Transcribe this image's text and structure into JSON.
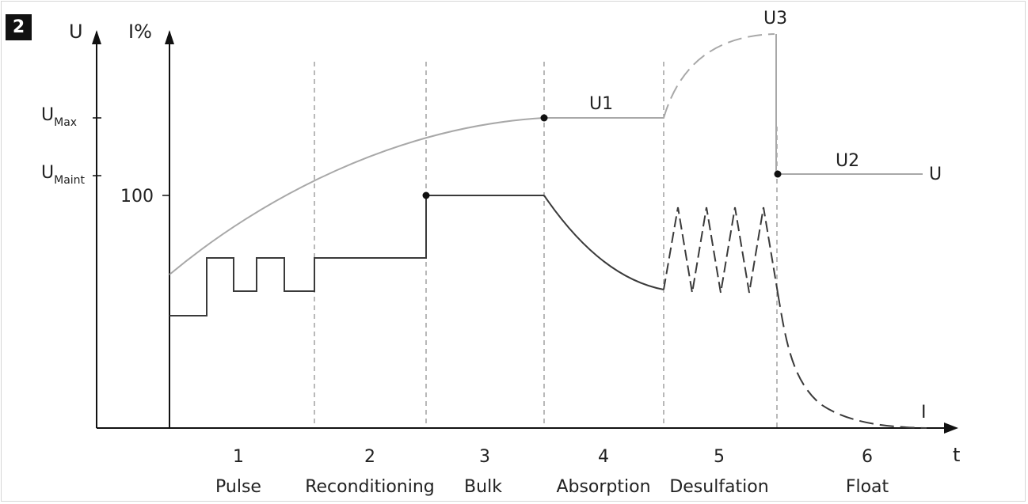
{
  "figure_number": "2",
  "axes": {
    "voltage_axis_label": "U",
    "current_axis_label": "I%",
    "time_axis_label": "t",
    "u_ticks": [
      {
        "main": "U",
        "sub": "Max"
      },
      {
        "main": "U",
        "sub": "Maint"
      }
    ],
    "current_tick": "100"
  },
  "phases": [
    {
      "number": "1",
      "name": "Pulse"
    },
    {
      "number": "2",
      "name": "Reconditioning"
    },
    {
      "number": "3",
      "name": "Bulk"
    },
    {
      "number": "4",
      "name": "Absorption"
    },
    {
      "number": "5",
      "name": "Desulfation"
    },
    {
      "number": "6",
      "name": "Float"
    }
  ],
  "curve_labels": {
    "u1": "U1",
    "u2": "U2",
    "u3": "U3",
    "voltage_curve": "U",
    "current_curve": "I"
  },
  "colors": {
    "axis": "#111111",
    "voltage_curve": "#a8a8a8",
    "current_curve": "#3a3a3a",
    "divider": "#8a8a8a",
    "badge": "#111111"
  }
}
